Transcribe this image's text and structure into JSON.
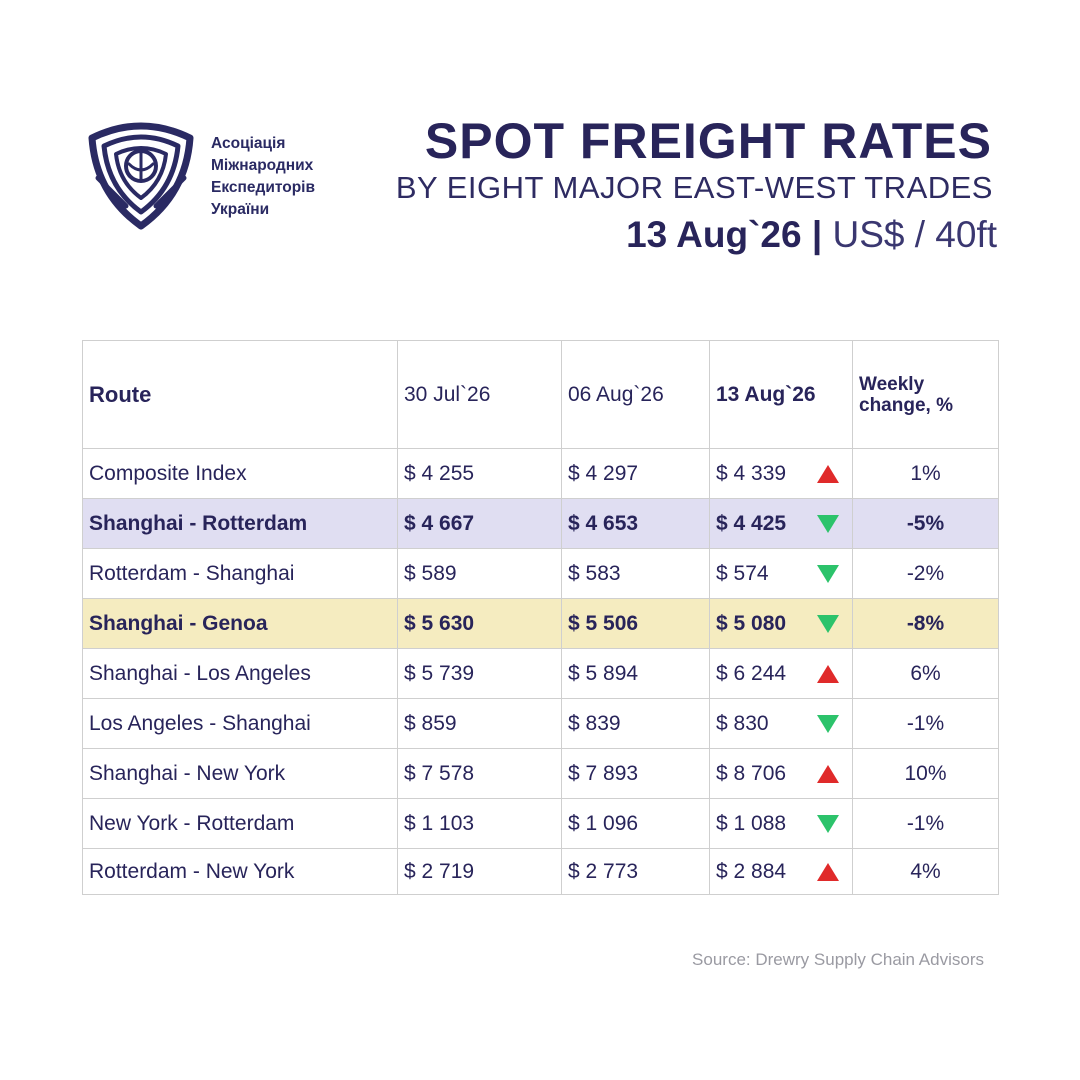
{
  "header": {
    "org_lines": [
      "Асоціація",
      "Міжнародних",
      "Експедиторів",
      "України"
    ],
    "title": "SPOT FREIGHT RATES",
    "subtitle": "BY EIGHT MAJOR EAST-WEST TRADES",
    "date": "13 Aug`26",
    "separator": "|",
    "unit": "US$ / 40ft"
  },
  "table": {
    "headers": [
      "Route",
      "30 Jul`26",
      "06 Aug`26",
      "13 Aug`26",
      "Weekly change, %"
    ],
    "rows": [
      {
        "route": "Composite Index",
        "c1": "$ 4 255",
        "c2": "$ 4 297",
        "c3": "$ 4 339",
        "trend": "up",
        "change": "1%",
        "highlight": "none"
      },
      {
        "route": "Shanghai - Rotterdam",
        "c1": "$ 4 667",
        "c2": "$ 4 653",
        "c3": "$ 4 425",
        "trend": "down",
        "change": "-5%",
        "highlight": "purple"
      },
      {
        "route": "Rotterdam - Shanghai",
        "c1": "$ 589",
        "c2": "$ 583",
        "c3": "$ 574",
        "trend": "down",
        "change": "-2%",
        "highlight": "none"
      },
      {
        "route": "Shanghai - Genoa",
        "c1": "$ 5 630",
        "c2": "$ 5 506",
        "c3": "$ 5 080",
        "trend": "down",
        "change": "-8%",
        "highlight": "yellow"
      },
      {
        "route": "Shanghai - Los Angeles",
        "c1": "$ 5 739",
        "c2": "$ 5 894",
        "c3": "$ 6 244",
        "trend": "up",
        "change": "6%",
        "highlight": "none"
      },
      {
        "route": "Los Angeles - Shanghai",
        "c1": "$ 859",
        "c2": "$ 839",
        "c3": "$ 830",
        "trend": "down",
        "change": "-1%",
        "highlight": "none"
      },
      {
        "route": "Shanghai - New York",
        "c1": "$ 7 578",
        "c2": "$ 7 893",
        "c3": "$ 8 706",
        "trend": "up",
        "change": "10%",
        "highlight": "none"
      },
      {
        "route": "New York - Rotterdam",
        "c1": "$ 1 103",
        "c2": "$ 1 096",
        "c3": "$ 1 088",
        "trend": "down",
        "change": "-1%",
        "highlight": "none"
      },
      {
        "route": "Rotterdam - New York",
        "c1": "$ 2 719",
        "c2": "$ 2 773",
        "c3": "$ 2 884",
        "trend": "up",
        "change": "4%",
        "highlight": "none"
      }
    ]
  },
  "source": "Source: Drewry Supply Chain Advisors",
  "colors": {
    "navy": "#28245a",
    "up_arrow": "#e02a2a",
    "down_arrow": "#2cc36b",
    "highlight_purple": "#e0def2",
    "highlight_yellow": "#f5ecc0",
    "source_grey": "#9a9aa2"
  },
  "icons": {
    "logo": "shield-emblem-logo",
    "trend_up": "red-triangle-up-icon",
    "trend_down": "green-triangle-down-icon"
  }
}
